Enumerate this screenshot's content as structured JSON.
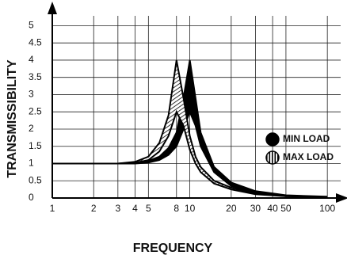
{
  "chart_data": {
    "type": "band",
    "x_label": "FREQUENCY",
    "y_label": "TRANSMISSIBILITY",
    "x": [
      1,
      3,
      4,
      5,
      6,
      7,
      8,
      9,
      10,
      11,
      12,
      15,
      20,
      30,
      50,
      100
    ],
    "series": [
      {
        "name": "MIN LOAD",
        "color": "#000000",
        "fill": "solid",
        "values": [
          1,
          1,
          1.02,
          1.08,
          1.2,
          1.45,
          1.9,
          2.9,
          4,
          2.9,
          1.9,
          0.9,
          0.45,
          0.2,
          0.08,
          0.04
        ],
        "lower": [
          1,
          1,
          1,
          1.03,
          1.1,
          1.25,
          1.5,
          2,
          2.5,
          2.1,
          1.5,
          0.75,
          0.35,
          0.15,
          0.06,
          0.03
        ]
      },
      {
        "name": "MAX LOAD",
        "color": "#000000",
        "fill": "hatch",
        "values": [
          1,
          1,
          1.05,
          1.2,
          1.6,
          2.4,
          4,
          2.9,
          1.8,
          1.2,
          0.9,
          0.5,
          0.3,
          0.13,
          0.05,
          0.03
        ],
        "lower": [
          1,
          1,
          1.02,
          1.1,
          1.35,
          1.8,
          2.5,
          2.1,
          1.4,
          1,
          0.75,
          0.42,
          0.25,
          0.11,
          0.05,
          0.02
        ]
      }
    ],
    "xscale": "log",
    "xlim": [
      1,
      125
    ],
    "xticks": [
      1,
      2,
      3,
      4,
      5,
      8,
      10,
      20,
      30,
      40,
      50,
      100
    ],
    "ylim": [
      0,
      5.4
    ],
    "yticks": [
      0,
      0.5,
      1,
      1.5,
      2,
      2.5,
      3,
      3.5,
      4,
      4.5,
      5
    ],
    "grid": true,
    "legend": "right"
  }
}
